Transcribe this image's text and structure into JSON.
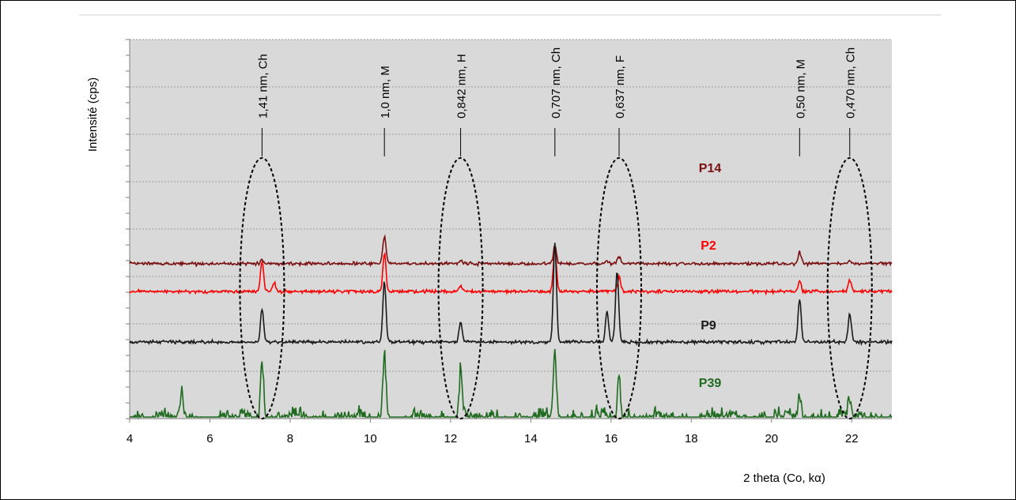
{
  "chart_data": {
    "type": "line",
    "title": "",
    "xlabel": "2 theta (Co, kα)",
    "ylabel": "Intensité (cps)",
    "xlim": [
      4,
      23
    ],
    "x_ticks": [
      4,
      6,
      8,
      10,
      12,
      14,
      16,
      18,
      20,
      22
    ],
    "grid": true,
    "plot_background": "#d9d9d9",
    "series": [
      {
        "name": "P14",
        "color": "#7b1010",
        "baseline": 0.31,
        "noise": 0.006,
        "peaks": [
          [
            7.3,
            0.012
          ],
          [
            10.35,
            0.11
          ],
          [
            12.25,
            0.012
          ],
          [
            14.6,
            0.07
          ],
          [
            15.9,
            0.012
          ],
          [
            16.2,
            0.03
          ],
          [
            20.7,
            0.045
          ],
          [
            21.95,
            0.012
          ]
        ]
      },
      {
        "name": "P2",
        "color": "#ff0000",
        "baseline": 0.2,
        "noise": 0.006,
        "peaks": [
          [
            7.3,
            0.12
          ],
          [
            7.6,
            0.035
          ],
          [
            10.35,
            0.15
          ],
          [
            12.25,
            0.02
          ],
          [
            14.6,
            0.17
          ],
          [
            16.2,
            0.055
          ],
          [
            20.7,
            0.04
          ],
          [
            21.95,
            0.045
          ]
        ]
      },
      {
        "name": "P9",
        "color": "#1a1a1a",
        "baseline": 0.0,
        "noise": 0.006,
        "peaks": [
          [
            7.3,
            0.13
          ],
          [
            10.35,
            0.24
          ],
          [
            12.25,
            0.08
          ],
          [
            14.6,
            0.39
          ],
          [
            15.9,
            0.12
          ],
          [
            16.15,
            0.28
          ],
          [
            20.7,
            0.17
          ],
          [
            21.95,
            0.11
          ]
        ]
      },
      {
        "name": "P39",
        "color": "#1f6b1f",
        "baseline": -0.3,
        "noise": 0.03,
        "peaks": [
          [
            5.3,
            0.1
          ],
          [
            7.3,
            0.24
          ],
          [
            10.35,
            0.27
          ],
          [
            12.25,
            0.2
          ],
          [
            14.6,
            0.28
          ],
          [
            16.2,
            0.17
          ],
          [
            20.7,
            0.09
          ],
          [
            21.95,
            0.09
          ]
        ]
      }
    ],
    "annotations": [
      {
        "text": "1,41 nm, Ch",
        "x": 7.3
      },
      {
        "text": "1,0 nm, M",
        "x": 10.35
      },
      {
        "text": "0,842 nm, H",
        "x": 12.25
      },
      {
        "text": "0,707 nm, Ch",
        "x": 14.6
      },
      {
        "text": "0,637 nm, F",
        "x": 16.2
      },
      {
        "text": "0,50 nm, M",
        "x": 20.7
      },
      {
        "text": "0,470 nm, Ch",
        "x": 21.95
      }
    ],
    "highlight_ellipses_x": [
      7.3,
      12.25,
      16.2,
      21.95
    ]
  }
}
